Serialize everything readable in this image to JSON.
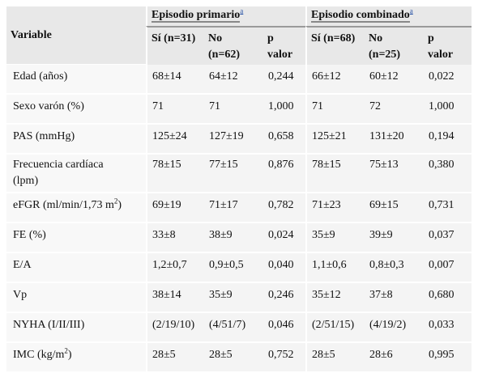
{
  "header": {
    "variable": "Variable",
    "group1": "Episodio primario",
    "group2": "Episodio combinado",
    "footnote_mark": "a",
    "sub": {
      "si1": "Sí (n=31)",
      "no1_a": "No",
      "no1_b": "(n=62)",
      "p1_a": "p",
      "p1_b": "valor",
      "si2": "Sí (n=68)",
      "no2_a": "No",
      "no2_b": "(n=25)",
      "p2_a": "p",
      "p2_b": "valor"
    }
  },
  "rows": [
    {
      "label": "Edad (años)",
      "si1": "68±14",
      "no1": "64±12",
      "p1": "0,244",
      "si2": "66±12",
      "no2": "60±12",
      "p2": "0,022"
    },
    {
      "label": "Sexo varón (%)",
      "si1": "71",
      "no1": "71",
      "p1": "1,000",
      "si2": "71",
      "no2": "72",
      "p2": "1,000"
    },
    {
      "label": "PAS (mmHg)",
      "si1": "125±24",
      "no1": "127±19",
      "p1": "0,658",
      "si2": "125±21",
      "no2": "131±20",
      "p2": "0,194"
    },
    {
      "label": "Frecuencia cardíaca",
      "label2": "(lpm)",
      "si1": "78±15",
      "no1": "77±15",
      "p1": "0,876",
      "si2": "78±15",
      "no2": "75±13",
      "p2": "0,380"
    },
    {
      "label": "eFGR (ml/min/1,73 m",
      "sup": "2",
      "label_end": ")",
      "si1": "69±19",
      "no1": "71±17",
      "p1": "0,782",
      "si2": "71±23",
      "no2": "69±15",
      "p2": "0,731"
    },
    {
      "label": "FE (%)",
      "si1": "33±8",
      "no1": "38±9",
      "p1": "0,024",
      "si2": "35±9",
      "no2": "39±9",
      "p2": "0,037"
    },
    {
      "label": "E/A",
      "si1": "1,2±0,7",
      "no1": "0,9±0,5",
      "p1": "0,040",
      "si2": "1,1±0,6",
      "no2": "0,8±0,3",
      "p2": "0,007"
    },
    {
      "label": "Vp",
      "si1": "38±14",
      "no1": "35±9",
      "p1": "0,246",
      "si2": "35±12",
      "no2": "37±8",
      "p2": "0,680"
    },
    {
      "label": "NYHA (I/II/III)",
      "si1": "(2/19/10)",
      "no1": "(4/51/7)",
      "p1": "0,046",
      "si2": "(2/51/15)",
      "no2": "(4/19/2)",
      "p2": "0,033"
    },
    {
      "label": "IMC (kg/m",
      "sup": "2",
      "label_end": ")",
      "si1": "28±5",
      "no1": "28±5",
      "p1": "0,752",
      "si2": "28±5",
      "no2": "28±6",
      "p2": "0,995"
    }
  ]
}
